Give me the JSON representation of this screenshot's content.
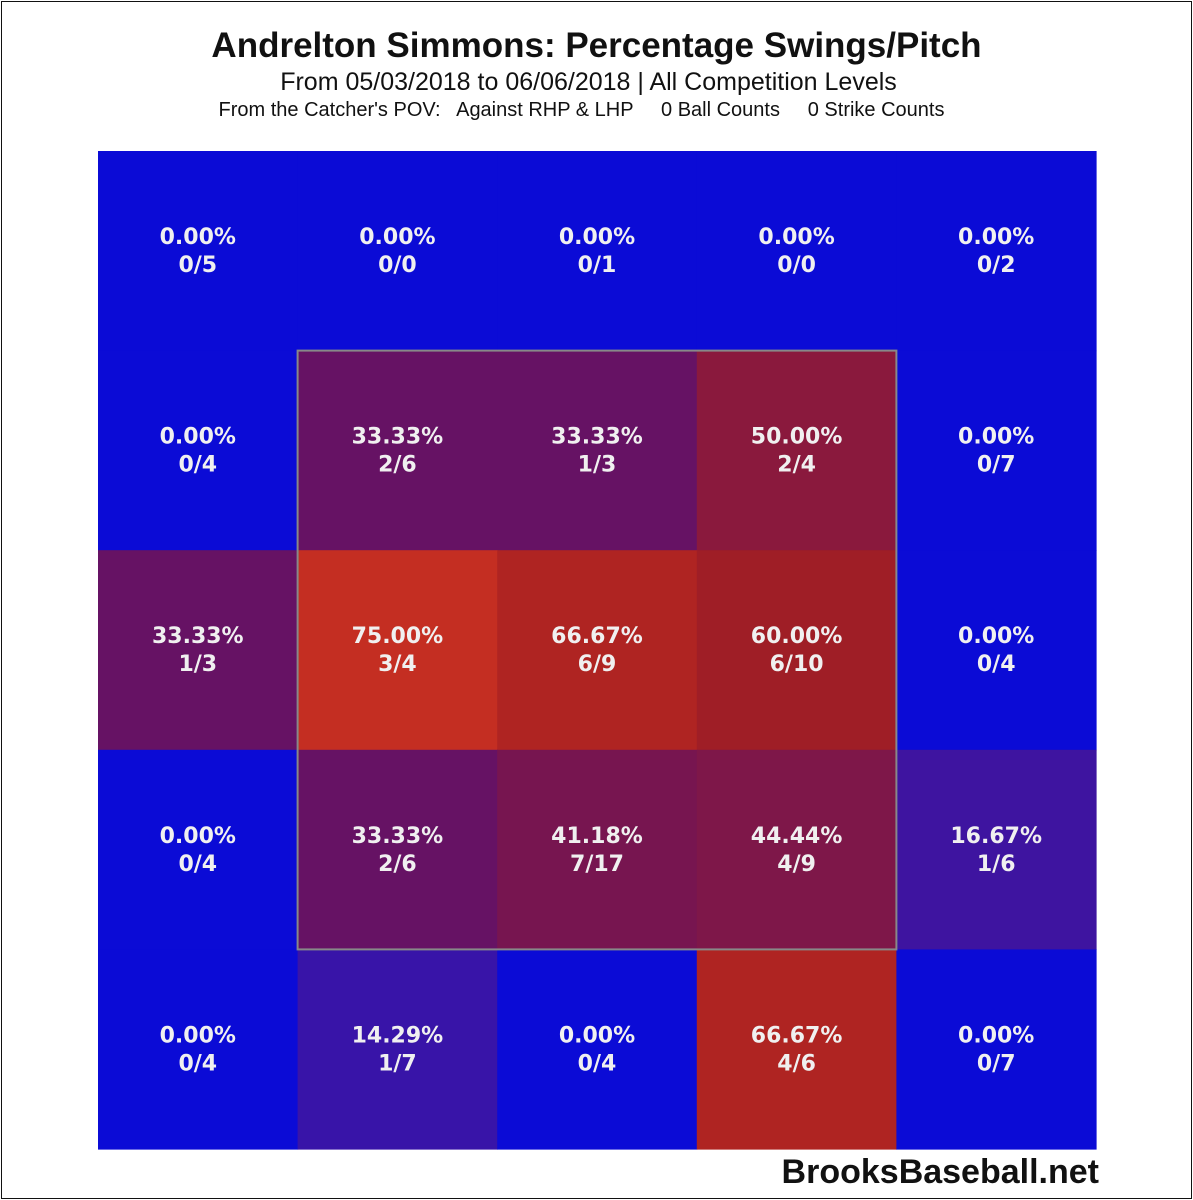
{
  "header": {
    "title": "Andrelton Simmons: Percentage Swings/Pitch",
    "subtitle": "From 05/03/2018 to 06/06/2018 | All Competition Levels",
    "subline": "From the Catcher's POV:   Against RHP & LHP     0 Ball Counts     0 Strike Counts"
  },
  "footer": {
    "credit": "BrooksBaseball.net"
  },
  "colors": {
    "zero": "#0b0bd6",
    "low": "#3a14a6",
    "mid": "#6a125e",
    "high": "#a31f22",
    "max": "#c42e22",
    "strike_zone_border": "#888888"
  },
  "chart_data": {
    "type": "heatmap",
    "title": "Andrelton Simmons: Percentage Swings/Pitch",
    "rows": 5,
    "cols": 5,
    "strike_zone": {
      "rows": [
        1,
        3
      ],
      "cols": [
        1,
        3
      ]
    },
    "cells": [
      [
        {
          "pct": "0.00%",
          "frac": "0/5",
          "value": 0.0
        },
        {
          "pct": "0.00%",
          "frac": "0/0",
          "value": 0.0
        },
        {
          "pct": "0.00%",
          "frac": "0/1",
          "value": 0.0
        },
        {
          "pct": "0.00%",
          "frac": "0/0",
          "value": 0.0
        },
        {
          "pct": "0.00%",
          "frac": "0/2",
          "value": 0.0
        }
      ],
      [
        {
          "pct": "0.00%",
          "frac": "0/4",
          "value": 0.0
        },
        {
          "pct": "33.33%",
          "frac": "2/6",
          "value": 33.33
        },
        {
          "pct": "33.33%",
          "frac": "1/3",
          "value": 33.33
        },
        {
          "pct": "50.00%",
          "frac": "2/4",
          "value": 50.0
        },
        {
          "pct": "0.00%",
          "frac": "0/7",
          "value": 0.0
        }
      ],
      [
        {
          "pct": "33.33%",
          "frac": "1/3",
          "value": 33.33
        },
        {
          "pct": "75.00%",
          "frac": "3/4",
          "value": 75.0
        },
        {
          "pct": "66.67%",
          "frac": "6/9",
          "value": 66.67
        },
        {
          "pct": "60.00%",
          "frac": "6/10",
          "value": 60.0
        },
        {
          "pct": "0.00%",
          "frac": "0/4",
          "value": 0.0
        }
      ],
      [
        {
          "pct": "0.00%",
          "frac": "0/4",
          "value": 0.0
        },
        {
          "pct": "33.33%",
          "frac": "2/6",
          "value": 33.33
        },
        {
          "pct": "41.18%",
          "frac": "7/17",
          "value": 41.18
        },
        {
          "pct": "44.44%",
          "frac": "4/9",
          "value": 44.44
        },
        {
          "pct": "16.67%",
          "frac": "1/6",
          "value": 16.67
        }
      ],
      [
        {
          "pct": "0.00%",
          "frac": "0/4",
          "value": 0.0
        },
        {
          "pct": "14.29%",
          "frac": "1/7",
          "value": 14.29
        },
        {
          "pct": "0.00%",
          "frac": "0/4",
          "value": 0.0
        },
        {
          "pct": "66.67%",
          "frac": "4/6",
          "value": 66.67
        },
        {
          "pct": "0.00%",
          "frac": "0/7",
          "value": 0.0
        }
      ]
    ]
  }
}
